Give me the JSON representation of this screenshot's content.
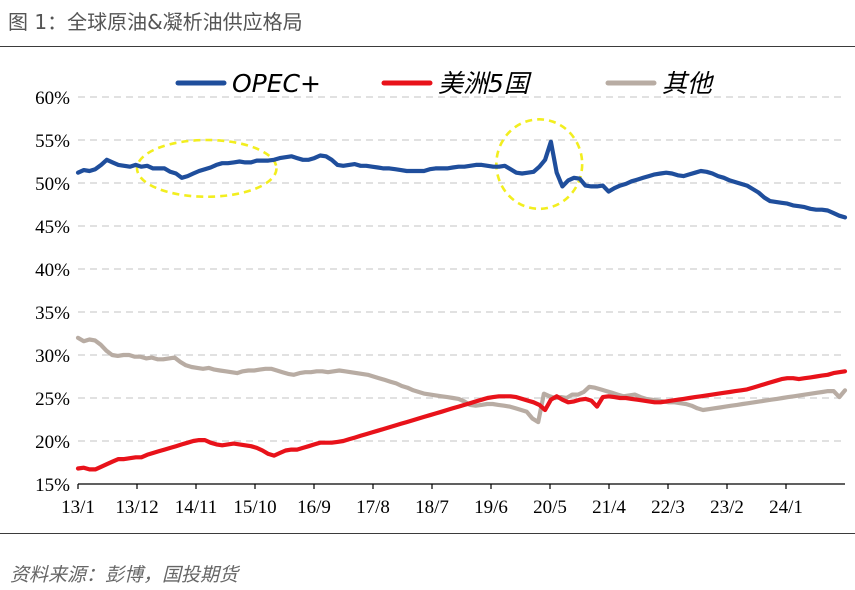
{
  "figure": {
    "title": "图 1：全球原油&凝析油供应格局",
    "source": "资料来源：彭博，国投期货"
  },
  "chart_data": {
    "type": "line",
    "title": "",
    "xlabel": "",
    "ylabel": "",
    "ylim": [
      0.15,
      0.6
    ],
    "yticks": [
      "15%",
      "20%",
      "25%",
      "30%",
      "35%",
      "40%",
      "45%",
      "50%",
      "55%",
      "60%"
    ],
    "xticks": [
      "13/1",
      "13/12",
      "14/11",
      "15/10",
      "16/9",
      "17/8",
      "18/7",
      "19/6",
      "20/5",
      "21/4",
      "22/3",
      "23/2",
      "24/1"
    ],
    "x_start": "2013-01",
    "x_end": "2024-12",
    "grid": true,
    "legend": "top",
    "series": [
      {
        "name": "OPEC+",
        "color": "#1f4e9c",
        "values": [
          0.512,
          0.515,
          0.514,
          0.516,
          0.521,
          0.527,
          0.524,
          0.521,
          0.52,
          0.519,
          0.521,
          0.519,
          0.52,
          0.517,
          0.517,
          0.517,
          0.513,
          0.511,
          0.506,
          0.508,
          0.511,
          0.514,
          0.516,
          0.518,
          0.521,
          0.523,
          0.523,
          0.524,
          0.525,
          0.524,
          0.524,
          0.526,
          0.526,
          0.526,
          0.527,
          0.529,
          0.53,
          0.531,
          0.529,
          0.527,
          0.527,
          0.529,
          0.532,
          0.531,
          0.527,
          0.521,
          0.52,
          0.521,
          0.522,
          0.52,
          0.52,
          0.519,
          0.518,
          0.517,
          0.517,
          0.516,
          0.515,
          0.514,
          0.514,
          0.514,
          0.514,
          0.516,
          0.517,
          0.517,
          0.517,
          0.518,
          0.519,
          0.519,
          0.52,
          0.521,
          0.521,
          0.52,
          0.519,
          0.519,
          0.52,
          0.516,
          0.512,
          0.511,
          0.512,
          0.513,
          0.519,
          0.527,
          0.548,
          0.512,
          0.496,
          0.503,
          0.506,
          0.505,
          0.497,
          0.496,
          0.496,
          0.497,
          0.49,
          0.494,
          0.497,
          0.499,
          0.502,
          0.504,
          0.506,
          0.508,
          0.51,
          0.511,
          0.512,
          0.511,
          0.509,
          0.508,
          0.51,
          0.512,
          0.514,
          0.513,
          0.511,
          0.508,
          0.506,
          0.503,
          0.501,
          0.499,
          0.497,
          0.493,
          0.489,
          0.483,
          0.479,
          0.478,
          0.477,
          0.476,
          0.474,
          0.473,
          0.472,
          0.47,
          0.469,
          0.469,
          0.468,
          0.465,
          0.462,
          0.46
        ]
      },
      {
        "name": "美洲5国",
        "color": "#e8121a",
        "values": [
          0.168,
          0.169,
          0.167,
          0.167,
          0.17,
          0.173,
          0.176,
          0.179,
          0.179,
          0.18,
          0.181,
          0.181,
          0.184,
          0.186,
          0.188,
          0.19,
          0.192,
          0.194,
          0.196,
          0.198,
          0.2,
          0.201,
          0.201,
          0.198,
          0.196,
          0.195,
          0.196,
          0.197,
          0.196,
          0.195,
          0.194,
          0.192,
          0.189,
          0.185,
          0.183,
          0.186,
          0.189,
          0.19,
          0.19,
          0.192,
          0.194,
          0.196,
          0.198,
          0.198,
          0.198,
          0.199,
          0.2,
          0.202,
          0.204,
          0.206,
          0.208,
          0.21,
          0.212,
          0.214,
          0.216,
          0.218,
          0.22,
          0.222,
          0.224,
          0.226,
          0.228,
          0.23,
          0.232,
          0.234,
          0.236,
          0.238,
          0.24,
          0.242,
          0.244,
          0.246,
          0.248,
          0.25,
          0.251,
          0.252,
          0.252,
          0.252,
          0.251,
          0.249,
          0.247,
          0.245,
          0.242,
          0.236,
          0.248,
          0.252,
          0.248,
          0.245,
          0.246,
          0.248,
          0.249,
          0.247,
          0.24,
          0.251,
          0.252,
          0.251,
          0.25,
          0.25,
          0.249,
          0.248,
          0.247,
          0.246,
          0.245,
          0.245,
          0.246,
          0.247,
          0.248,
          0.249,
          0.25,
          0.251,
          0.252,
          0.253,
          0.254,
          0.255,
          0.256,
          0.257,
          0.258,
          0.259,
          0.26,
          0.262,
          0.264,
          0.266,
          0.268,
          0.27,
          0.272,
          0.273,
          0.273,
          0.272,
          0.273,
          0.274,
          0.275,
          0.276,
          0.277,
          0.279,
          0.28,
          0.281
        ]
      },
      {
        "name": "其他",
        "color": "#b8aca3",
        "values": [
          0.32,
          0.316,
          0.318,
          0.317,
          0.312,
          0.305,
          0.3,
          0.299,
          0.3,
          0.3,
          0.298,
          0.298,
          0.296,
          0.297,
          0.295,
          0.295,
          0.296,
          0.297,
          0.292,
          0.288,
          0.286,
          0.285,
          0.284,
          0.285,
          0.283,
          0.282,
          0.281,
          0.28,
          0.279,
          0.281,
          0.282,
          0.282,
          0.283,
          0.284,
          0.284,
          0.282,
          0.28,
          0.278,
          0.277,
          0.279,
          0.28,
          0.28,
          0.281,
          0.281,
          0.28,
          0.281,
          0.282,
          0.281,
          0.28,
          0.279,
          0.278,
          0.277,
          0.275,
          0.273,
          0.271,
          0.269,
          0.267,
          0.264,
          0.262,
          0.259,
          0.257,
          0.255,
          0.254,
          0.253,
          0.252,
          0.251,
          0.25,
          0.249,
          0.246,
          0.242,
          0.241,
          0.242,
          0.243,
          0.243,
          0.242,
          0.241,
          0.24,
          0.238,
          0.236,
          0.234,
          0.226,
          0.222,
          0.255,
          0.252,
          0.25,
          0.251,
          0.25,
          0.254,
          0.254,
          0.257,
          0.263,
          0.262,
          0.26,
          0.258,
          0.256,
          0.254,
          0.252,
          0.253,
          0.254,
          0.251,
          0.249,
          0.248,
          0.247,
          0.246,
          0.245,
          0.245,
          0.244,
          0.243,
          0.241,
          0.238,
          0.236,
          0.237,
          0.238,
          0.239,
          0.24,
          0.241,
          0.242,
          0.243,
          0.244,
          0.245,
          0.246,
          0.247,
          0.248,
          0.249,
          0.25,
          0.251,
          0.252,
          0.253,
          0.254,
          0.255,
          0.256,
          0.257,
          0.258,
          0.258,
          0.251,
          0.259
        ]
      }
    ],
    "annotations": [
      {
        "type": "ellipse",
        "color": "#f2ee1f",
        "x_center": "2015-01",
        "y_center": 0.517,
        "x_radius_months": 13,
        "y_radius": 0.033
      },
      {
        "type": "ellipse",
        "color": "#f2ee1f",
        "x_center": "2020-03",
        "y_center": 0.522,
        "x_radius_months": 8,
        "y_radius": 0.052
      }
    ]
  }
}
